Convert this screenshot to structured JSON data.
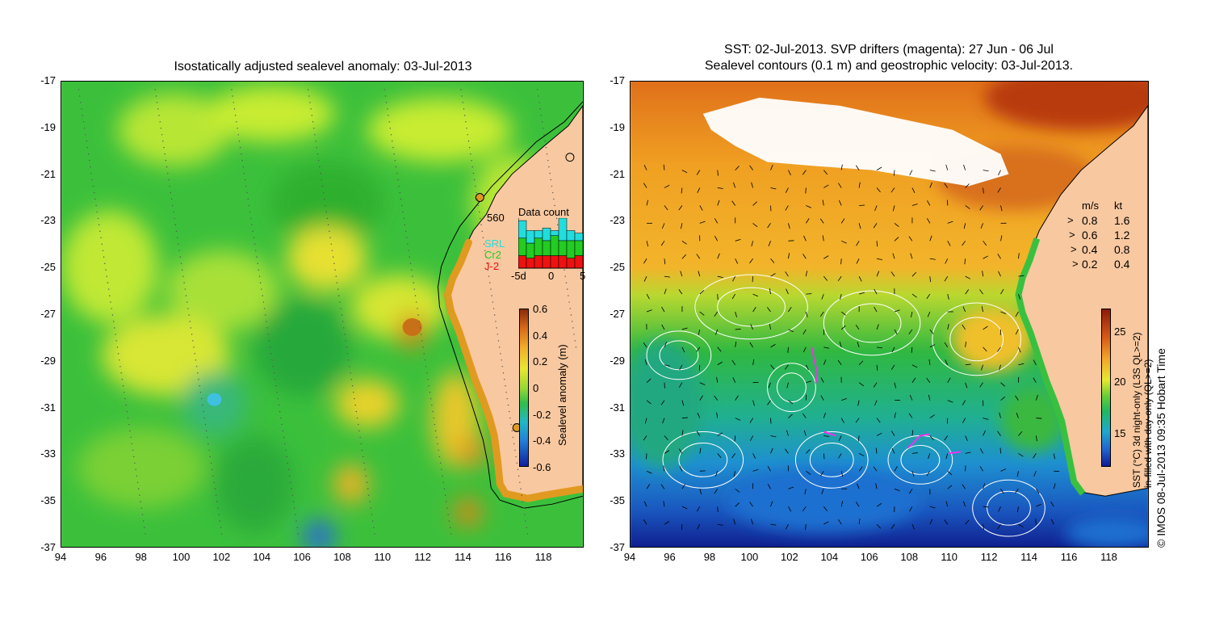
{
  "left_panel": {
    "title": "Isostatically adjusted sealevel anomaly: 03-Jul-2013",
    "x_ticks": [
      "94",
      "96",
      "98",
      "100",
      "102",
      "104",
      "106",
      "108",
      "110",
      "112",
      "114",
      "116",
      "118"
    ],
    "y_ticks": [
      "-17",
      "-19",
      "-21",
      "-23",
      "-25",
      "-27",
      "-29",
      "-31",
      "-33",
      "-35",
      "-37"
    ],
    "colorbar": {
      "label": "Sealevel anomaly (m)",
      "ticks": [
        "0.6",
        "0.4",
        "0.2",
        "0",
        "-0.2",
        "-0.4",
        "-0.6"
      ],
      "range": [
        -0.6,
        0.6
      ]
    },
    "data_count": {
      "title": "Data count",
      "max_label": "560",
      "legend": [
        {
          "name": "SRL",
          "color": "#22dddd"
        },
        {
          "name": "Cr2",
          "color": "#22cc22"
        },
        {
          "name": "J-2",
          "color": "#ee1111"
        }
      ],
      "x_ticks": [
        "-5d",
        "0",
        "5"
      ],
      "bars": [
        {
          "srl": 0.35,
          "cr2": 0.35,
          "j2": 0.25
        },
        {
          "srl": 0.25,
          "cr2": 0.3,
          "j2": 0.2
        },
        {
          "srl": 0.15,
          "cr2": 0.35,
          "j2": 0.25
        },
        {
          "srl": 0.25,
          "cr2": 0.3,
          "j2": 0.25
        },
        {
          "srl": 0.1,
          "cr2": 0.4,
          "j2": 0.25
        },
        {
          "srl": 0.45,
          "cr2": 0.3,
          "j2": 0.25
        },
        {
          "srl": 0.2,
          "cr2": 0.35,
          "j2": 0.2
        },
        {
          "srl": 0.15,
          "cr2": 0.3,
          "j2": 0.25
        }
      ]
    },
    "colors": {
      "ocean_base": "#35c035",
      "land": "#f8c8a0"
    }
  },
  "right_panel": {
    "title_line1": "SST: 02-Jul-2013. SVP drifters (magenta): 27 Jun - 06 Jul",
    "title_line2": "Sealevel contours (0.1 m) and geostrophic velocity: 03-Jul-2013.",
    "x_ticks": [
      "94",
      "96",
      "98",
      "100",
      "102",
      "104",
      "106",
      "108",
      "110",
      "112",
      "114",
      "116",
      "118"
    ],
    "y_ticks": [
      "-17",
      "-19",
      "-21",
      "-23",
      "-25",
      "-27",
      "-29",
      "-31",
      "-33",
      "-35",
      "-37"
    ],
    "velocity_legend": {
      "header_ms": "m/s",
      "header_kt": "kt",
      "rows": [
        {
          "ms": "0.8",
          "kt": "1.6"
        },
        {
          "ms": "0.6",
          "kt": "1.2"
        },
        {
          "ms": "0.4",
          "kt": "0.8"
        },
        {
          "ms": "0.2",
          "kt": "0.4"
        }
      ]
    },
    "colorbar": {
      "label_line1": "SST (°C) 3d night-only (L3S QL>=2)",
      "label_line2": "in-filled with day-only (QL>=2)",
      "ticks": [
        "25",
        "20",
        "15"
      ],
      "range": [
        12,
        28
      ]
    },
    "colors": {
      "land": "#f8c8a0",
      "drifter": "#ee33ee",
      "contour": "#ffffff"
    }
  },
  "credit": "© IMOS 08-Jul-2013 09:35 Hobart Time"
}
